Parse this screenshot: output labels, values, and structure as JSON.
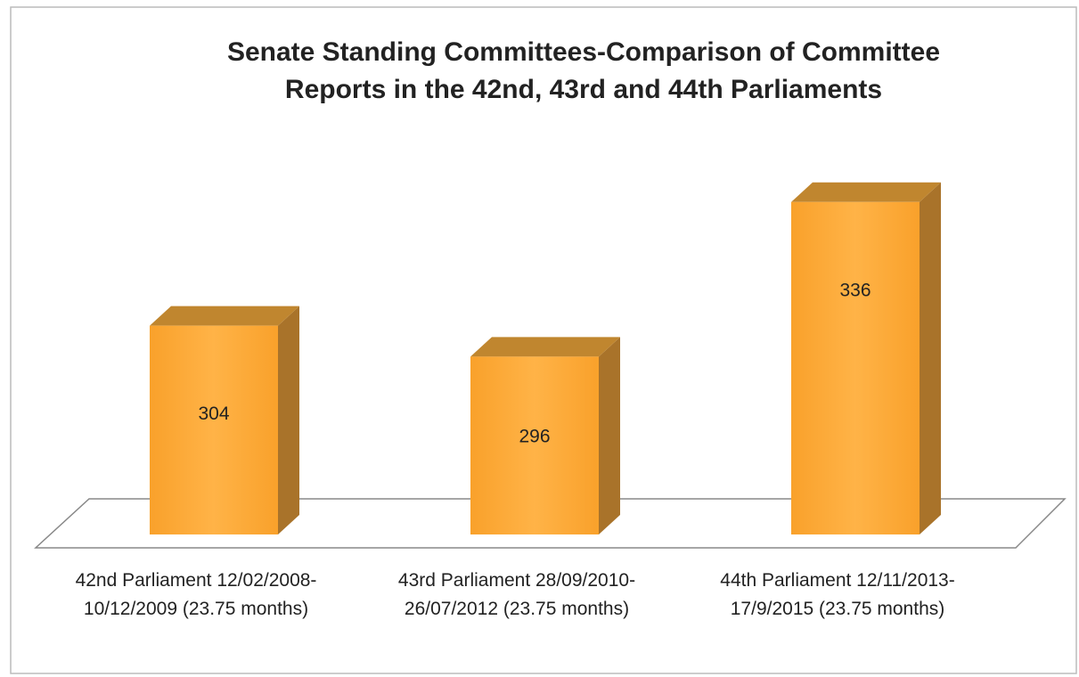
{
  "chart_data": {
    "type": "bar3d",
    "title": "Senate Standing Committees-Comparison of Committee Reports in the 42nd, 43rd and 44th Parliaments",
    "categories": [
      "42nd Parliament 12/02/2008-10/12/2009 (23.75 months)",
      "43rd Parliament 28/09/2010-26/07/2012 (23.75 months)",
      "44th Parliament 12/11/2013-17/9/2015 (23.75 months)"
    ],
    "values": [
      304,
      296,
      336
    ],
    "color": "#f9a12b",
    "ylim": [
      250,
      350
    ]
  }
}
